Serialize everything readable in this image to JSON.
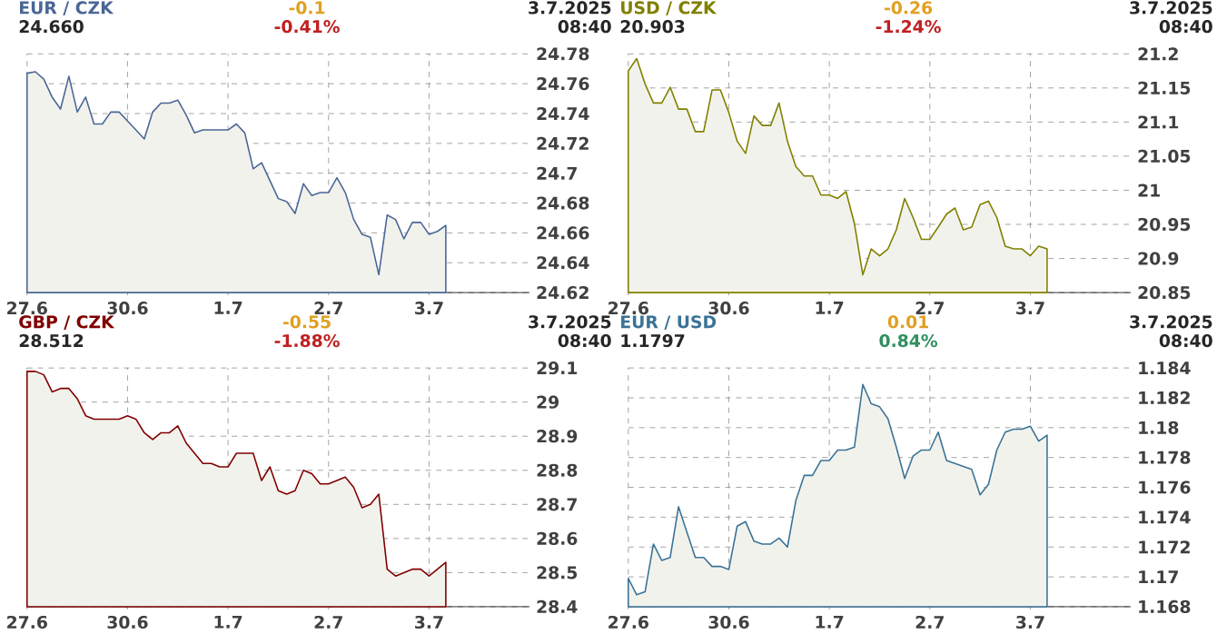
{
  "chart_data": [
    {
      "type": "area",
      "title": "EUR / CZK",
      "annotations": [
        "24.660",
        "-0.1",
        "-0.41%",
        "3.7.2025",
        "08:40"
      ],
      "categories": [
        "27.6",
        null,
        null,
        null,
        null,
        null,
        null,
        null,
        null,
        null,
        null,
        null,
        "30.6",
        null,
        null,
        null,
        null,
        null,
        null,
        null,
        null,
        null,
        null,
        null,
        "1.7",
        null,
        null,
        null,
        null,
        null,
        null,
        null,
        null,
        null,
        null,
        null,
        "2.7",
        null,
        null,
        null,
        null,
        null,
        null,
        null,
        null,
        null,
        null,
        null,
        "3.7",
        null,
        null,
        null,
        null,
        null,
        null,
        null,
        null,
        null,
        null,
        null,
        null
      ],
      "series": [
        {
          "color": "#4a6796",
          "values": [
            24.767,
            24.768,
            24.763,
            24.751,
            24.743,
            24.765,
            24.741,
            24.751,
            24.733,
            24.733,
            24.741,
            24.741,
            24.735,
            24.729,
            24.723,
            24.741,
            24.747,
            24.747,
            24.749,
            24.739,
            24.727,
            24.729,
            24.729,
            24.729,
            24.729,
            24.733,
            24.727,
            24.703,
            24.707,
            24.695,
            24.683,
            24.681,
            24.673,
            24.693,
            24.685,
            24.687,
            24.687,
            24.697,
            24.687,
            24.669,
            24.659,
            24.657,
            24.632,
            24.672,
            24.669,
            24.656,
            24.667,
            24.667,
            24.659,
            24.661,
            24.665,
            null,
            null,
            null,
            null,
            null,
            null,
            null,
            null,
            null,
            null
          ]
        }
      ],
      "ylim": [
        24.62,
        24.78
      ],
      "yticks": [
        24.62,
        24.64,
        24.66,
        24.68,
        24.7,
        24.72,
        24.74,
        24.76,
        24.78
      ],
      "grid": true
    },
    {
      "type": "area",
      "title": "USD / CZK",
      "annotations": [
        "20.903",
        "-0.26",
        "-1.24%",
        "3.7.2025",
        "08:40"
      ],
      "categories": [
        "27.6",
        null,
        null,
        null,
        null,
        null,
        null,
        null,
        null,
        null,
        null,
        null,
        "30.6",
        null,
        null,
        null,
        null,
        null,
        null,
        null,
        null,
        null,
        null,
        null,
        "1.7",
        null,
        null,
        null,
        null,
        null,
        null,
        null,
        null,
        null,
        null,
        null,
        "2.7",
        null,
        null,
        null,
        null,
        null,
        null,
        null,
        null,
        null,
        null,
        null,
        "3.7",
        null,
        null,
        null,
        null,
        null,
        null,
        null,
        null,
        null,
        null,
        null,
        null
      ],
      "series": [
        {
          "color": "#808000",
          "values": [
            21.175,
            21.193,
            21.156,
            21.128,
            21.128,
            21.151,
            21.119,
            21.119,
            21.086,
            21.086,
            21.147,
            21.147,
            21.114,
            21.072,
            21.054,
            21.109,
            21.095,
            21.095,
            21.128,
            21.072,
            21.035,
            21.021,
            21.021,
            20.993,
            20.993,
            20.988,
            20.998,
            20.951,
            20.876,
            20.914,
            20.904,
            20.914,
            20.942,
            20.988,
            20.96,
            20.928,
            20.928,
            20.946,
            20.965,
            20.974,
            20.942,
            20.946,
            20.979,
            20.984,
            20.96,
            20.918,
            20.914,
            20.914,
            20.904,
            20.918,
            20.914,
            null,
            null,
            null,
            null,
            null,
            null,
            null,
            null,
            null,
            null
          ]
        }
      ],
      "ylim": [
        20.85,
        21.2
      ],
      "yticks": [
        20.85,
        20.9,
        20.95,
        21,
        21.05,
        21.1,
        21.15,
        21.2
      ],
      "grid": true
    },
    {
      "type": "area",
      "title": "GBP / CZK",
      "annotations": [
        "28.512",
        "-0.55",
        "-1.88%",
        "3.7.2025",
        "08:40"
      ],
      "categories": [
        "27.6",
        null,
        null,
        null,
        null,
        null,
        null,
        null,
        null,
        null,
        null,
        null,
        "30.6",
        null,
        null,
        null,
        null,
        null,
        null,
        null,
        null,
        null,
        null,
        null,
        "1.7",
        null,
        null,
        null,
        null,
        null,
        null,
        null,
        null,
        null,
        null,
        null,
        "2.7",
        null,
        null,
        null,
        null,
        null,
        null,
        null,
        null,
        null,
        null,
        null,
        "3.7",
        null,
        null,
        null,
        null,
        null,
        null,
        null,
        null,
        null,
        null,
        null,
        null
      ],
      "series": [
        {
          "color": "#800000",
          "values": [
            29.09,
            29.09,
            29.08,
            29.03,
            29.04,
            29.04,
            29.01,
            28.96,
            28.95,
            28.95,
            28.95,
            28.95,
            28.96,
            28.95,
            28.91,
            28.89,
            28.91,
            28.91,
            28.93,
            28.88,
            28.85,
            28.82,
            28.82,
            28.81,
            28.81,
            28.85,
            28.85,
            28.85,
            28.77,
            28.81,
            28.74,
            28.73,
            28.74,
            28.8,
            28.79,
            28.76,
            28.76,
            28.77,
            28.78,
            28.75,
            28.69,
            28.7,
            28.73,
            28.51,
            28.49,
            28.5,
            28.51,
            28.51,
            28.49,
            28.51,
            28.53,
            null,
            null,
            null,
            null,
            null,
            null,
            null,
            null,
            null,
            null
          ]
        }
      ],
      "ylim": [
        28.4,
        29.1
      ],
      "yticks": [
        28.4,
        28.5,
        28.6,
        28.7,
        28.8,
        28.9,
        29,
        29.1
      ],
      "grid": true
    },
    {
      "type": "area",
      "title": "EUR / USD",
      "annotations": [
        "1.1797",
        "0.01",
        "0.84%",
        "3.7.2025",
        "08:40"
      ],
      "categories": [
        "27.6",
        null,
        null,
        null,
        null,
        null,
        null,
        null,
        null,
        null,
        null,
        null,
        "30.6",
        null,
        null,
        null,
        null,
        null,
        null,
        null,
        null,
        null,
        null,
        null,
        "1.7",
        null,
        null,
        null,
        null,
        null,
        null,
        null,
        null,
        null,
        null,
        null,
        "2.7",
        null,
        null,
        null,
        null,
        null,
        null,
        null,
        null,
        null,
        null,
        null,
        "3.7",
        null,
        null,
        null,
        null,
        null,
        null,
        null,
        null,
        null,
        null,
        null,
        null
      ],
      "series": [
        {
          "color": "#3a7396",
          "values": [
            1.1699,
            1.1688,
            1.169,
            1.1722,
            1.1711,
            1.1713,
            1.1747,
            1.173,
            1.1713,
            1.1713,
            1.1707,
            1.1707,
            1.1705,
            1.1734,
            1.1737,
            1.1724,
            1.1722,
            1.1722,
            1.1726,
            1.172,
            1.1751,
            1.1768,
            1.1768,
            1.1778,
            1.1778,
            1.1785,
            1.1785,
            1.1787,
            1.1829,
            1.1816,
            1.1814,
            1.1806,
            1.1787,
            1.1766,
            1.1781,
            1.1785,
            1.1785,
            1.1797,
            1.1778,
            1.1776,
            1.1774,
            1.1772,
            1.1755,
            1.1762,
            1.1785,
            1.1797,
            1.1799,
            1.1799,
            1.1801,
            1.1791,
            1.1795,
            null,
            null,
            null,
            null,
            null,
            null,
            null,
            null,
            null,
            null
          ]
        }
      ],
      "ylim": [
        1.168,
        1.184
      ],
      "yticks": [
        1.168,
        1.17,
        1.172,
        1.174,
        1.176,
        1.178,
        1.18,
        1.182,
        1.184
      ],
      "grid": true
    }
  ]
}
